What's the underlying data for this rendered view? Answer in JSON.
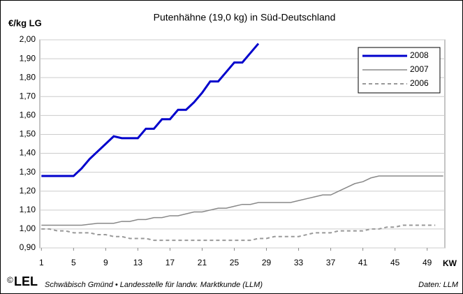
{
  "chart_data": {
    "type": "line",
    "title": "Putenhähne (19,0 kg) in Süd-Deutschland",
    "y_label": "€/kg LG",
    "x_label": "KW",
    "footer": {
      "copyright": "©",
      "logo": "LEL",
      "source": "Schwäbisch Gmünd • Landesstelle für landw. Marktkunde (LLM)",
      "data_credit": "Daten: LLM"
    },
    "x": [
      1,
      2,
      3,
      4,
      5,
      6,
      7,
      8,
      9,
      10,
      11,
      12,
      13,
      14,
      15,
      16,
      17,
      18,
      19,
      20,
      21,
      22,
      23,
      24,
      25,
      26,
      27,
      28,
      29,
      30,
      31,
      32,
      33,
      34,
      35,
      36,
      37,
      38,
      39,
      40,
      41,
      42,
      43,
      44,
      45,
      46,
      47,
      48,
      49,
      50,
      51
    ],
    "xlim": [
      0.8,
      51.2
    ],
    "xticks": [
      1,
      5,
      9,
      13,
      17,
      21,
      25,
      29,
      33,
      37,
      41,
      45,
      49
    ],
    "ylim": [
      0.9,
      2.0
    ],
    "yticks": [
      {
        "value": 0.9,
        "label": "0,90"
      },
      {
        "value": 1.0,
        "label": "1,00"
      },
      {
        "value": 1.1,
        "label": "1,10"
      },
      {
        "value": 1.2,
        "label": "1,20"
      },
      {
        "value": 1.3,
        "label": "1,30"
      },
      {
        "value": 1.4,
        "label": "1,40"
      },
      {
        "value": 1.5,
        "label": "1,50"
      },
      {
        "value": 1.6,
        "label": "1,60"
      },
      {
        "value": 1.7,
        "label": "1,70"
      },
      {
        "value": 1.8,
        "label": "1,80"
      },
      {
        "value": 1.9,
        "label": "1,90"
      },
      {
        "value": 2.0,
        "label": "2,00"
      }
    ],
    "grid": true,
    "legend": "top-right",
    "series": [
      {
        "name": "2008",
        "color": "#0000cc",
        "width": 3,
        "dash": "solid",
        "values": [
          1.28,
          1.28,
          1.28,
          1.28,
          1.28,
          1.32,
          1.37,
          1.41,
          1.45,
          1.49,
          1.48,
          1.48,
          1.48,
          1.53,
          1.53,
          1.58,
          1.58,
          1.63,
          1.63,
          1.67,
          1.72,
          1.78,
          1.78,
          1.83,
          1.88,
          1.88,
          1.93,
          1.98,
          null,
          null,
          null,
          null,
          null,
          null,
          null,
          null,
          null,
          null,
          null,
          null,
          null,
          null,
          null,
          null,
          null,
          null,
          null,
          null,
          null,
          null,
          null
        ]
      },
      {
        "name": "2007",
        "color": "#888888",
        "width": 1.5,
        "dash": "solid",
        "values": [
          1.02,
          1.02,
          1.02,
          1.02,
          1.02,
          1.02,
          1.025,
          1.03,
          1.03,
          1.03,
          1.04,
          1.04,
          1.05,
          1.05,
          1.06,
          1.06,
          1.07,
          1.07,
          1.08,
          1.09,
          1.09,
          1.1,
          1.11,
          1.11,
          1.12,
          1.13,
          1.13,
          1.14,
          1.14,
          1.14,
          1.14,
          1.14,
          1.15,
          1.16,
          1.17,
          1.18,
          1.18,
          1.2,
          1.22,
          1.24,
          1.25,
          1.27,
          1.28,
          1.28,
          1.28,
          1.28,
          1.28,
          1.28,
          1.28,
          1.28,
          1.28
        ]
      },
      {
        "name": "2006",
        "color": "#999999",
        "width": 2,
        "dash": "dashed",
        "values": [
          1.0,
          1.0,
          0.99,
          0.99,
          0.98,
          0.98,
          0.98,
          0.97,
          0.97,
          0.96,
          0.96,
          0.95,
          0.95,
          0.95,
          0.94,
          0.94,
          0.94,
          0.94,
          0.94,
          0.94,
          0.94,
          0.94,
          0.94,
          0.94,
          0.94,
          0.94,
          0.94,
          0.95,
          0.95,
          0.96,
          0.96,
          0.96,
          0.96,
          0.97,
          0.98,
          0.98,
          0.98,
          0.99,
          0.99,
          0.99,
          0.99,
          1.0,
          1.0,
          1.01,
          1.01,
          1.02,
          1.02,
          1.02,
          1.02,
          1.02,
          null
        ]
      }
    ]
  }
}
